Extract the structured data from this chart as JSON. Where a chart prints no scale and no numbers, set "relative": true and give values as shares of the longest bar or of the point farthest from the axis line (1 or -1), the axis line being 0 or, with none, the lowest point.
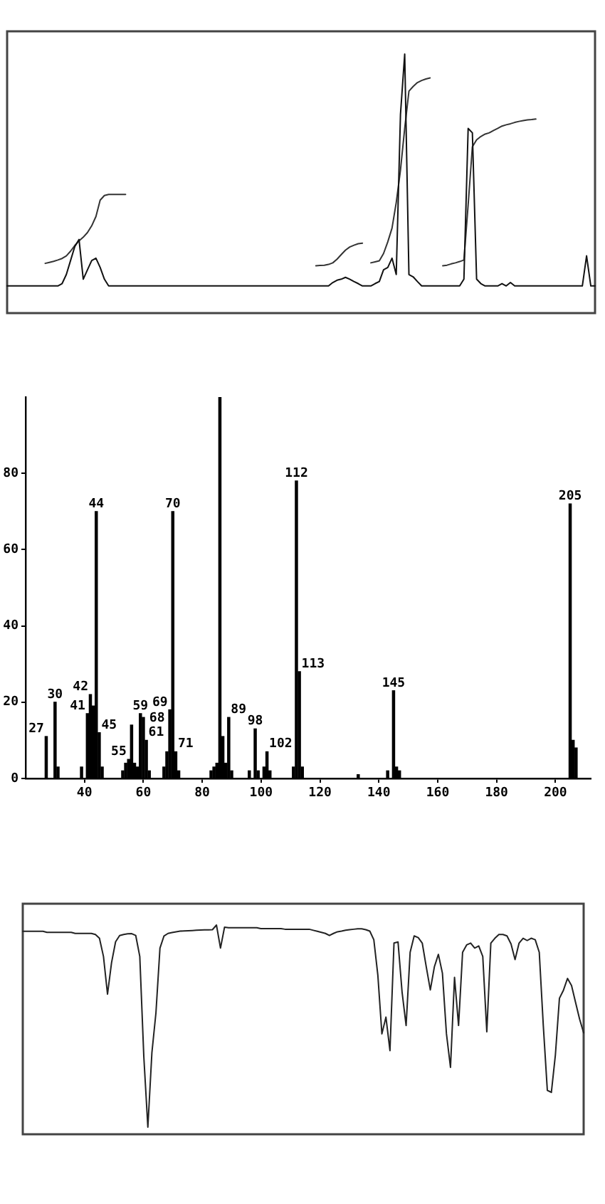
{
  "chart_data": [
    {
      "type": "line",
      "relative": true,
      "marker": "none",
      "categories": [
        null,
        null,
        null,
        null,
        null,
        null,
        null,
        null,
        null,
        null,
        null,
        null,
        null,
        null,
        null,
        null,
        null,
        null,
        null,
        null,
        null,
        null,
        null,
        null,
        null,
        null,
        null,
        null,
        null,
        null,
        null,
        null,
        null,
        null,
        null,
        null,
        null,
        null,
        null,
        null,
        null,
        null,
        null,
        null,
        null,
        null,
        null,
        null,
        null,
        null,
        null,
        null,
        null,
        null,
        null,
        null,
        null,
        null,
        null,
        null,
        null,
        null,
        null,
        null,
        null,
        null,
        null,
        null,
        null,
        null,
        null,
        null,
        null,
        null,
        null,
        null,
        null,
        null,
        null,
        null,
        null,
        null,
        null,
        null,
        null,
        null,
        null,
        null,
        null,
        null,
        null,
        null,
        null,
        null,
        null,
        null,
        null,
        null,
        null,
        null,
        null,
        null,
        null,
        null,
        null,
        null,
        null,
        null,
        null,
        null,
        null,
        null,
        null,
        null,
        null,
        null,
        null,
        null,
        null,
        null,
        null,
        null,
        null,
        null,
        null,
        null,
        null,
        null,
        null,
        null,
        null,
        null,
        null,
        null,
        null,
        null,
        null,
        null,
        null,
        null
      ],
      "series": [
        {
          "color": "#111111",
          "values": [
            0.105,
            0.105,
            0.105,
            0.105,
            0.105,
            0.105,
            0.105,
            0.105,
            0.105,
            0.105,
            0.105,
            0.105,
            0.105,
            0.114,
            0.149,
            0.203,
            0.257,
            0.284,
            0.131,
            0.167,
            0.203,
            0.212,
            0.176,
            0.131,
            0.105,
            0.105,
            0.105,
            0.105,
            0.105,
            0.105,
            0.105,
            0.105,
            0.105,
            0.105,
            0.105,
            0.105,
            0.105,
            0.105,
            0.105,
            0.105,
            0.105,
            0.105,
            0.105,
            0.105,
            0.105,
            0.105,
            0.105,
            0.105,
            0.105,
            0.105,
            0.105,
            0.105,
            0.105,
            0.105,
            0.105,
            0.105,
            0.105,
            0.105,
            0.105,
            0.105,
            0.105,
            0.105,
            0.105,
            0.105,
            0.105,
            0.105,
            0.105,
            0.105,
            0.105,
            0.105,
            0.105,
            0.105,
            0.105,
            0.105,
            0.105,
            0.105,
            0.105,
            0.118,
            0.127,
            0.131,
            0.138,
            0.131,
            0.122,
            0.114,
            0.105,
            0.105,
            0.105,
            0.114,
            0.122,
            0.167,
            0.176,
            0.212,
            0.149,
            0.767,
            1,
            0.149,
            0.14,
            0.122,
            0.105,
            0.105,
            0.105,
            0.105,
            0.105,
            0.105,
            0.105,
            0.105,
            0.105,
            0.105,
            0.131,
            0.713,
            0.696,
            0.131,
            0.114,
            0.105,
            0.105,
            0.105,
            0.105,
            0.114,
            0.105,
            0.118,
            0.105,
            0.105,
            0.105,
            0.105,
            0.105,
            0.105,
            0.105,
            0.105,
            0.105,
            0.105,
            0.105,
            0.105,
            0.105,
            0.105,
            0.105,
            0.105,
            0.105,
            0.221,
            0.105,
            0.105
          ]
        },
        {
          "color": "#333333",
          "values": [
            null,
            null,
            null,
            null,
            null,
            null,
            null,
            null,
            null,
            0.192,
            0.196,
            0.2,
            0.205,
            0.211,
            0.221,
            0.239,
            0.261,
            0.279,
            0.293,
            0.311,
            0.337,
            0.373,
            0.436,
            0.454,
            0.458,
            0.458,
            0.458,
            0.458,
            0.458,
            null,
            null,
            null,
            null,
            null,
            null,
            null,
            null,
            null,
            null,
            null,
            null,
            null,
            null,
            null,
            null,
            null,
            null,
            null,
            null,
            null,
            null,
            null,
            null,
            null,
            null,
            null,
            null,
            null,
            null,
            null,
            null,
            null,
            null,
            null,
            null,
            null,
            null,
            null,
            null,
            null,
            null,
            null,
            null,
            0.183,
            0.184,
            0.185,
            0.188,
            0.194,
            0.208,
            0.226,
            0.243,
            0.255,
            0.262,
            0.268,
            0.27,
            null,
            0.194,
            0.198,
            0.202,
            0.23,
            0.275,
            0.328,
            0.427,
            0.552,
            0.713,
            0.857,
            0.875,
            0.89,
            0.898,
            0.904,
            0.908,
            null,
            null,
            0.183,
            0.185,
            0.19,
            0.194,
            0.199,
            0.205,
            0.418,
            0.642,
            0.669,
            0.682,
            0.691,
            0.696,
            0.705,
            0.713,
            0.722,
            0.727,
            0.731,
            0.736,
            0.74,
            0.743,
            0.746,
            0.747,
            0.749,
            null,
            null,
            null,
            null,
            null,
            null,
            null,
            null,
            null,
            null,
            null,
            null,
            null,
            null
          ]
        }
      ]
    },
    {
      "type": "bar",
      "color": "#000000",
      "x": [
        27,
        30,
        31,
        39,
        41,
        42,
        43,
        44,
        45,
        46,
        53,
        54,
        55,
        56,
        57,
        58,
        59,
        60,
        61,
        62,
        67,
        68,
        69,
        70,
        71,
        72,
        83,
        84,
        85,
        86,
        87,
        88,
        89,
        90,
        96,
        98,
        99,
        101,
        102,
        103,
        111,
        112,
        113,
        114,
        133,
        143,
        145,
        146,
        147,
        205,
        206,
        207
      ],
      "values": [
        11,
        20,
        3,
        3,
        17,
        22,
        19,
        70,
        12,
        3,
        2,
        4,
        5,
        14,
        4,
        3,
        17,
        16,
        10,
        2,
        3,
        7,
        18,
        70,
        7,
        2,
        2,
        3,
        4,
        100,
        11,
        4,
        16,
        2,
        2,
        13,
        2,
        3,
        7,
        2,
        3,
        78,
        28,
        3,
        1,
        2,
        23,
        3,
        2,
        72,
        10,
        8
      ],
      "annotations": [
        {
          "text": "27",
          "x": 27,
          "y": 11
        },
        {
          "text": "30",
          "x": 30,
          "y": 20
        },
        {
          "text": "41",
          "x": 41,
          "y": 17
        },
        {
          "text": "42",
          "x": 42,
          "y": 22
        },
        {
          "text": "44",
          "x": 44,
          "y": 70
        },
        {
          "text": "45",
          "x": 45,
          "y": 12
        },
        {
          "text": "55",
          "x": 55,
          "y": 5
        },
        {
          "text": "59",
          "x": 59,
          "y": 17
        },
        {
          "text": "61",
          "x": 61,
          "y": 10
        },
        {
          "text": "68",
          "x": 68,
          "y": 7
        },
        {
          "text": "69",
          "x": 69,
          "y": 18
        },
        {
          "text": "70",
          "x": 70,
          "y": 70
        },
        {
          "text": "71",
          "x": 71,
          "y": 7
        },
        {
          "text": "89",
          "x": 89,
          "y": 16
        },
        {
          "text": "98",
          "x": 98,
          "y": 13
        },
        {
          "text": "102",
          "x": 102,
          "y": 7
        },
        {
          "text": "112",
          "x": 112,
          "y": 78
        },
        {
          "text": "113",
          "x": 113,
          "y": 28
        },
        {
          "text": "145",
          "x": 145,
          "y": 23
        },
        {
          "text": "205",
          "x": 205,
          "y": 72
        }
      ],
      "xlim": [
        20,
        212
      ],
      "xticks": [
        40,
        60,
        80,
        100,
        120,
        140,
        160,
        180,
        200
      ],
      "ylim": [
        0,
        100
      ],
      "yticks": [
        0,
        20,
        40,
        60,
        80
      ]
    },
    {
      "type": "line",
      "relative": true,
      "marker": "none",
      "color": "#222222",
      "categories": [
        null,
        null,
        null,
        null,
        null,
        null,
        null,
        null,
        null,
        null,
        null,
        null,
        null,
        null,
        null,
        null,
        null,
        null,
        null,
        null,
        null,
        null,
        null,
        null,
        null,
        null,
        null,
        null,
        null,
        null,
        null,
        null,
        null,
        null,
        null,
        null,
        null,
        null,
        null,
        null,
        null,
        null,
        null,
        null,
        null,
        null,
        null,
        null,
        null,
        null,
        null,
        null,
        null,
        null,
        null,
        null,
        null,
        null,
        null,
        null,
        null,
        null,
        null,
        null,
        null,
        null,
        null,
        null,
        null,
        null,
        null,
        null,
        null,
        null,
        null,
        null,
        null,
        null,
        null,
        null,
        null,
        null,
        null,
        null,
        null,
        null,
        null,
        null,
        null,
        null,
        null,
        null,
        null,
        null,
        null,
        null,
        null,
        null,
        null,
        null,
        null,
        null,
        null,
        null,
        null,
        null,
        null,
        null,
        null,
        null,
        null,
        null,
        null,
        null,
        null,
        null,
        null,
        null,
        null,
        null,
        null,
        null,
        null,
        null,
        null,
        null,
        null,
        null,
        null,
        null,
        null,
        null,
        null,
        null,
        null,
        null,
        null,
        null,
        null,
        null
      ],
      "values": [
        0.97,
        0.97,
        0.97,
        0.97,
        0.97,
        0.97,
        0.965,
        0.965,
        0.965,
        0.965,
        0.965,
        0.965,
        0.965,
        0.96,
        0.96,
        0.96,
        0.96,
        0.96,
        0.955,
        0.937,
        0.85,
        0.67,
        0.82,
        0.92,
        0.95,
        0.955,
        0.958,
        0.959,
        0.95,
        0.85,
        0.37,
        0.034,
        0.39,
        0.58,
        0.89,
        0.948,
        0.96,
        0.964,
        0.968,
        0.971,
        0.972,
        0.973,
        0.974,
        0.975,
        0.976,
        0.977,
        0.977,
        0.978,
        1,
        0.89,
        0.99,
        0.987,
        0.987,
        0.987,
        0.987,
        0.987,
        0.987,
        0.987,
        0.987,
        0.983,
        0.983,
        0.983,
        0.983,
        0.983,
        0.983,
        0.98,
        0.98,
        0.98,
        0.98,
        0.98,
        0.98,
        0.98,
        0.975,
        0.97,
        0.965,
        0.96,
        0.95,
        0.96,
        0.968,
        0.971,
        0.975,
        0.978,
        0.98,
        0.982,
        0.982,
        0.978,
        0.971,
        0.93,
        0.76,
        0.48,
        0.56,
        0.4,
        0.914,
        0.919,
        0.68,
        0.52,
        0.87,
        0.948,
        0.94,
        0.914,
        0.8,
        0.69,
        0.8,
        0.86,
        0.77,
        0.48,
        0.32,
        0.75,
        0.52,
        0.87,
        0.905,
        0.914,
        0.89,
        0.9,
        0.85,
        0.49,
        0.914,
        0.937,
        0.955,
        0.955,
        0.948,
        0.91,
        0.835,
        0.914,
        0.937,
        0.926,
        0.937,
        0.93,
        0.87,
        0.52,
        0.21,
        0.2,
        0.38,
        0.65,
        0.689,
        0.745,
        0.711,
        0.63,
        0.55,
        0.485
      ]
    }
  ]
}
